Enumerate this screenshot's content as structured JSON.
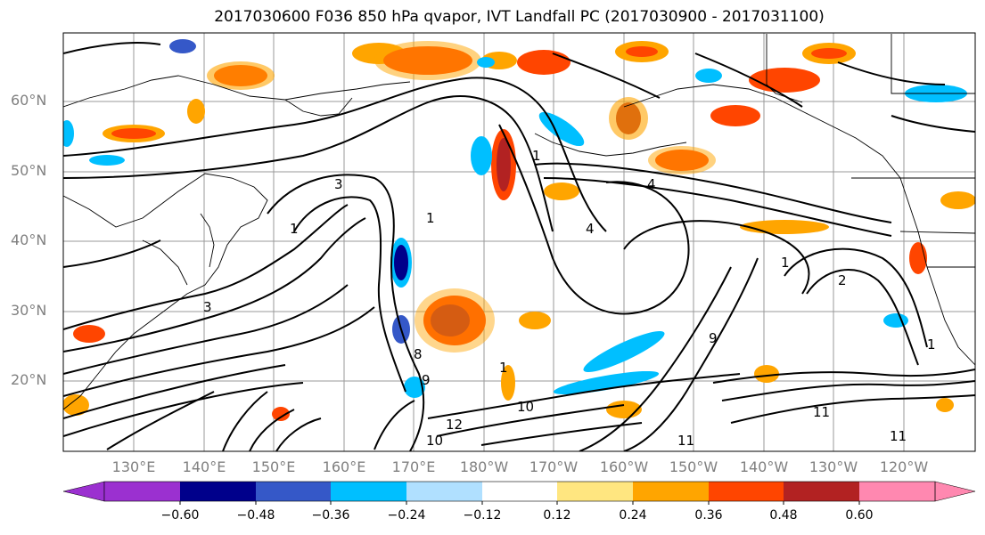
{
  "title": "2017030600 F036 850 hPa qvapor, IVT Landfall PC (2017030900 - 2017031100)",
  "lat_labels": [
    "60°N",
    "50°N",
    "40°N",
    "30°N",
    "20°N"
  ],
  "lon_labels": [
    "130°E",
    "140°E",
    "150°E",
    "160°E",
    "170°E",
    "180°W",
    "170°W",
    "160°W",
    "150°W",
    "140°W",
    "130°W",
    "120°W"
  ],
  "colorbar": {
    "ticks": [
      "−0.60",
      "−0.48",
      "−0.36",
      "−0.24",
      "−0.12",
      "0.12",
      "0.24",
      "0.36",
      "0.48",
      "0.60"
    ],
    "colors": [
      "#9b30d0",
      "#00008b",
      "#3558c8",
      "#00bfff",
      "#b0e0ff",
      "#ffffff",
      "#ffe680",
      "#ffa500",
      "#ff4500",
      "#b22222",
      "#ff88b0"
    ]
  },
  "contour_labels": [
    "1",
    "1",
    "3",
    "4",
    "4",
    "3",
    "1",
    "8",
    "9",
    "1",
    "9",
    "11",
    "11",
    "1",
    "2",
    "1",
    "12",
    "10",
    "10",
    "11"
  ],
  "map": {
    "projection": "cylindrical",
    "lon_range": [
      "120°E",
      "115°W"
    ],
    "lat_range": [
      "10°N",
      "70°N"
    ],
    "grid": true,
    "line_color": "#000000"
  }
}
